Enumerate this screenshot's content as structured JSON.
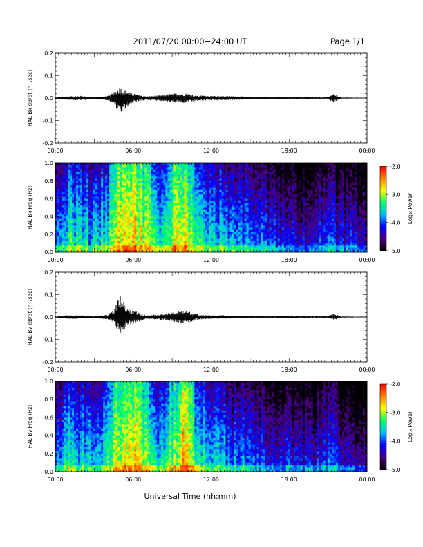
{
  "header": {
    "title": "2011/07/20  00:00−24:00 UT",
    "page": "Page 1/1"
  },
  "xlabel": "Universal Time (hh:mm)",
  "colorbar": {
    "label": "Log₁₀ Power",
    "ticks": [
      "-2.0",
      "-3.0",
      "-4.0",
      "-5.0"
    ],
    "range": [
      -5.0,
      -2.0
    ],
    "colormap": [
      "#000000",
      "#4b0082",
      "#0000ff",
      "#00bfff",
      "#00ff66",
      "#ffff00",
      "#ff8000",
      "#ff0000"
    ]
  },
  "chart_data": [
    {
      "type": "line",
      "ylabel": "HAL Bx dB/dt (nT/sec)",
      "ylim": [
        -0.2,
        0.2
      ],
      "yticks": [
        "0.2",
        "0.1",
        "0.0",
        "-0.1",
        "-0.2"
      ],
      "xticks": [
        "00:00",
        "06:00",
        "12:00",
        "18:00",
        "00:00"
      ],
      "x_hours": [
        0,
        1,
        2,
        3,
        4,
        4.5,
        5,
        5.5,
        6,
        7,
        8,
        9,
        10,
        11,
        12,
        13,
        14,
        15,
        16,
        17,
        18,
        19,
        20,
        21,
        21.4,
        22,
        23,
        24
      ],
      "envelope": [
        0.003,
        0.008,
        0.01,
        0.004,
        0.01,
        0.025,
        0.05,
        0.03,
        0.02,
        0.008,
        0.012,
        0.02,
        0.022,
        0.012,
        0.01,
        0.01,
        0.008,
        0.006,
        0.006,
        0.006,
        0.005,
        0.004,
        0.004,
        0.004,
        0.02,
        0.003,
        0.002,
        0.002
      ],
      "min_envelope": [
        -0.003,
        -0.008,
        -0.01,
        -0.004,
        -0.01,
        -0.03,
        -0.08,
        -0.04,
        -0.02,
        -0.008,
        -0.012,
        -0.02,
        -0.022,
        -0.012,
        -0.01,
        -0.01,
        -0.008,
        -0.006,
        -0.006,
        -0.006,
        -0.005,
        -0.004,
        -0.004,
        -0.004,
        -0.02,
        -0.003,
        -0.002,
        -0.002
      ]
    },
    {
      "type": "heatmap",
      "ylabel": "HAL Bx Freq (Hz)",
      "ylim": [
        0.0,
        1.0
      ],
      "yticks": [
        "1.0",
        "0.8",
        "0.6",
        "0.4",
        "0.2",
        "0.0"
      ],
      "xticks": [
        "00:00",
        "06:00",
        "12:00",
        "18:00",
        "00:00"
      ],
      "zlim": [
        -5.0,
        -2.0
      ],
      "activity_hours": [
        0,
        1,
        2,
        3,
        4,
        5,
        6,
        7,
        8,
        9,
        10,
        11,
        12,
        13,
        14,
        15,
        16,
        17,
        18,
        19,
        20,
        21,
        22,
        23,
        24
      ],
      "activity_level": [
        -3.9,
        -3.3,
        -3.4,
        -3.6,
        -3.3,
        -2.7,
        -2.6,
        -3.0,
        -3.5,
        -3.0,
        -2.7,
        -3.4,
        -3.3,
        -3.6,
        -3.7,
        -3.8,
        -3.9,
        -4.0,
        -4.1,
        -4.1,
        -4.2,
        -3.9,
        -4.2,
        -4.2,
        -4.3
      ]
    },
    {
      "type": "line",
      "ylabel": "HAL By dB/dt (nT/sec)",
      "ylim": [
        -0.2,
        0.2
      ],
      "yticks": [
        "0.2",
        "0.1",
        "0.0",
        "-0.1",
        "-0.2"
      ],
      "xticks": [
        "00:00",
        "06:00",
        "12:00",
        "18:00",
        "00:00"
      ],
      "x_hours": [
        0,
        1,
        2,
        3,
        4,
        4.5,
        5,
        5.5,
        6,
        7,
        8,
        9,
        10,
        11,
        12,
        13,
        14,
        15,
        16,
        17,
        18,
        19,
        20,
        21,
        21.4,
        22,
        23,
        24
      ],
      "envelope": [
        0.003,
        0.008,
        0.008,
        0.004,
        0.01,
        0.03,
        0.11,
        0.04,
        0.03,
        0.008,
        0.012,
        0.02,
        0.03,
        0.012,
        0.008,
        0.008,
        0.006,
        0.006,
        0.005,
        0.005,
        0.005,
        0.004,
        0.004,
        0.004,
        0.015,
        0.003,
        0.002,
        0.002
      ],
      "min_envelope": [
        -0.003,
        -0.008,
        -0.008,
        -0.004,
        -0.01,
        -0.03,
        -0.08,
        -0.04,
        -0.03,
        -0.008,
        -0.012,
        -0.02,
        -0.03,
        -0.012,
        -0.008,
        -0.008,
        -0.006,
        -0.006,
        -0.005,
        -0.005,
        -0.005,
        -0.004,
        -0.004,
        -0.004,
        -0.015,
        -0.003,
        -0.002,
        -0.002
      ]
    },
    {
      "type": "heatmap",
      "ylabel": "HAL By Freq (Hz)",
      "ylim": [
        0.0,
        1.0
      ],
      "yticks": [
        "1.0",
        "0.8",
        "0.6",
        "0.4",
        "0.2",
        "0.0"
      ],
      "xticks": [
        "00:00",
        "06:00",
        "12:00",
        "18:00",
        "00:00"
      ],
      "zlim": [
        -5.0,
        -2.0
      ],
      "activity_hours": [
        0,
        1,
        2,
        3,
        4,
        5,
        6,
        7,
        8,
        9,
        10,
        11,
        12,
        13,
        14,
        15,
        16,
        17,
        18,
        19,
        20,
        21,
        22,
        23,
        24
      ],
      "activity_level": [
        -3.9,
        -3.3,
        -3.5,
        -3.6,
        -3.3,
        -2.8,
        -2.7,
        -3.1,
        -3.5,
        -3.1,
        -2.5,
        -3.4,
        -3.4,
        -3.7,
        -3.8,
        -3.8,
        -3.9,
        -4.0,
        -4.1,
        -4.1,
        -4.2,
        -3.8,
        -4.2,
        -4.3,
        -4.4
      ]
    }
  ]
}
